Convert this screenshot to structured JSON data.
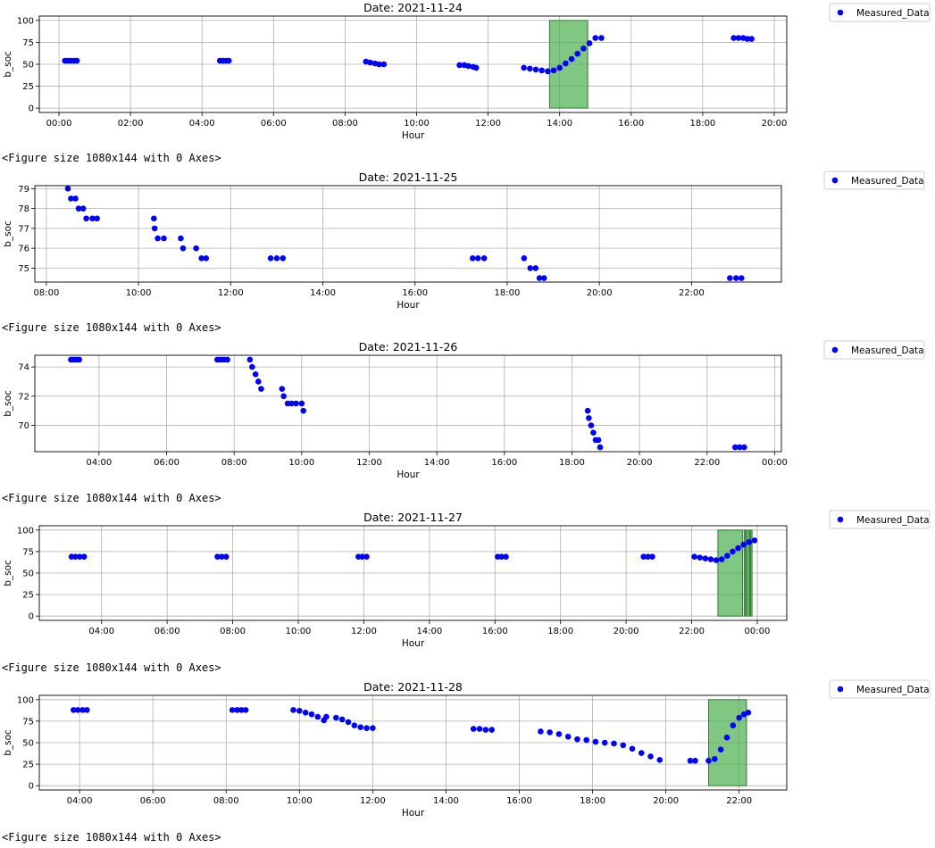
{
  "figure_label": "<Figure size 1080x144 with 0 Axes>",
  "colors": {
    "points": "#0000ff",
    "charge": "#4caf50",
    "grid": "#b0b0b0"
  },
  "chart_data": [
    {
      "type": "scatter",
      "title": "Date: 2021-11-24",
      "xlabel": "Hour",
      "ylabel": "b_soc",
      "x_ticks": [
        "00:00",
        "02:00",
        "04:00",
        "06:00",
        "08:00",
        "10:00",
        "12:00",
        "14:00",
        "16:00",
        "18:00",
        "20:00"
      ],
      "x_tick_hours": [
        0,
        2,
        4,
        6,
        8,
        10,
        12,
        14,
        16,
        18,
        20
      ],
      "xlim_hours": [
        -0.55,
        20.35
      ],
      "y_ticks": [
        0,
        25,
        50,
        75,
        100
      ],
      "ylim": [
        -5,
        105
      ],
      "grid": true,
      "legend": "top-right",
      "series": [
        {
          "name": "Measured_Data",
          "points": [
            [
              "00:10",
              54
            ],
            [
              "00:15",
              54
            ],
            [
              "00:20",
              54
            ],
            [
              "00:25",
              54
            ],
            [
              "00:30",
              54
            ],
            [
              "04:30",
              54
            ],
            [
              "04:35",
              54
            ],
            [
              "04:40",
              54
            ],
            [
              "04:45",
              54
            ],
            [
              "08:35",
              53
            ],
            [
              "08:42",
              52
            ],
            [
              "08:50",
              51
            ],
            [
              "08:57",
              50
            ],
            [
              "09:05",
              50
            ],
            [
              "11:12",
              49
            ],
            [
              "11:20",
              49
            ],
            [
              "11:27",
              48
            ],
            [
              "11:35",
              47
            ],
            [
              "11:40",
              46
            ],
            [
              "13:00",
              46
            ],
            [
              "13:10",
              45
            ],
            [
              "13:20",
              44
            ],
            [
              "13:30",
              43
            ],
            [
              "13:40",
              42
            ],
            [
              "13:50",
              43
            ],
            [
              "14:00",
              46
            ],
            [
              "14:10",
              51
            ],
            [
              "14:20",
              56
            ],
            [
              "14:30",
              62
            ],
            [
              "14:40",
              68
            ],
            [
              "14:50",
              74
            ],
            [
              "15:00",
              80
            ],
            [
              "15:10",
              80
            ],
            [
              "18:52",
              80
            ],
            [
              "19:00",
              80
            ],
            [
              "19:08",
              80
            ],
            [
              "19:15",
              79
            ],
            [
              "19:22",
              79
            ]
          ]
        }
      ],
      "spans": [
        [
          "13:43",
          "14:47"
        ]
      ]
    },
    {
      "type": "scatter",
      "title": "Date: 2021-11-25",
      "xlabel": "Hour",
      "ylabel": "b_soc",
      "x_ticks": [
        "08:00",
        "10:00",
        "12:00",
        "14:00",
        "16:00",
        "18:00",
        "20:00",
        "22:00"
      ],
      "x_tick_hours": [
        8,
        10,
        12,
        14,
        16,
        18,
        20,
        22
      ],
      "xlim_hours": [
        7.75,
        23.95
      ],
      "y_ticks": [
        75,
        76,
        77,
        78,
        79
      ],
      "ylim": [
        74.3,
        79.15
      ],
      "grid": true,
      "legend": "top-right",
      "series": [
        {
          "name": "Measured_Data",
          "points": [
            [
              "08:28",
              79
            ],
            [
              "08:32",
              78.5
            ],
            [
              "08:38",
              78.5
            ],
            [
              "08:42",
              78
            ],
            [
              "08:48",
              78
            ],
            [
              "08:52",
              77.5
            ],
            [
              "09:00",
              77.5
            ],
            [
              "09:06",
              77.5
            ],
            [
              "10:20",
              77.5
            ],
            [
              "10:21",
              77
            ],
            [
              "10:25",
              76.5
            ],
            [
              "10:33",
              76.5
            ],
            [
              "10:55",
              76.5
            ],
            [
              "10:58",
              76
            ],
            [
              "11:15",
              76
            ],
            [
              "11:22",
              75.5
            ],
            [
              "11:28",
              75.5
            ],
            [
              "12:52",
              75.5
            ],
            [
              "13:00",
              75.5
            ],
            [
              "13:08",
              75.5
            ],
            [
              "17:15",
              75.5
            ],
            [
              "17:22",
              75.5
            ],
            [
              "17:30",
              75.5
            ],
            [
              "18:22",
              75.5
            ],
            [
              "18:30",
              75
            ],
            [
              "18:37",
              75
            ],
            [
              "18:42",
              74.5
            ],
            [
              "18:48",
              74.5
            ],
            [
              "22:50",
              74.5
            ],
            [
              "22:58",
              74.5
            ],
            [
              "23:05",
              74.5
            ]
          ]
        }
      ],
      "spans": []
    },
    {
      "type": "scatter",
      "title": "Date: 2021-11-26",
      "xlabel": "Hour",
      "ylabel": "b_soc",
      "x_ticks": [
        "04:00",
        "06:00",
        "08:00",
        "10:00",
        "12:00",
        "14:00",
        "16:00",
        "18:00",
        "20:00",
        "22:00",
        "00:00"
      ],
      "x_tick_hours": [
        4,
        6,
        8,
        10,
        12,
        14,
        16,
        18,
        20,
        22,
        24
      ],
      "xlim_hours": [
        2.1,
        24.2
      ],
      "y_ticks": [
        70,
        72,
        74
      ],
      "ylim": [
        68.2,
        74.8
      ],
      "grid": true,
      "legend": "top-right",
      "series": [
        {
          "name": "Measured_Data",
          "points": [
            [
              "03:10",
              74.5
            ],
            [
              "03:15",
              74.5
            ],
            [
              "03:20",
              74.5
            ],
            [
              "03:25",
              74.5
            ],
            [
              "07:30",
              74.5
            ],
            [
              "07:36",
              74.5
            ],
            [
              "07:42",
              74.5
            ],
            [
              "07:48",
              74.5
            ],
            [
              "08:28",
              74.5
            ],
            [
              "08:32",
              74
            ],
            [
              "08:38",
              73.5
            ],
            [
              "08:43",
              73
            ],
            [
              "08:48",
              72.5
            ],
            [
              "09:25",
              72.5
            ],
            [
              "09:28",
              72
            ],
            [
              "09:35",
              71.5
            ],
            [
              "09:42",
              71.5
            ],
            [
              "09:50",
              71.5
            ],
            [
              "10:00",
              71.5
            ],
            [
              "10:03",
              71
            ],
            [
              "18:28",
              71
            ],
            [
              "18:30",
              70.5
            ],
            [
              "18:34",
              70
            ],
            [
              "18:38",
              69.5
            ],
            [
              "18:42",
              69
            ],
            [
              "18:47",
              69
            ],
            [
              "18:50",
              68.5
            ],
            [
              "22:50",
              68.5
            ],
            [
              "22:58",
              68.5
            ],
            [
              "23:06",
              68.5
            ]
          ]
        }
      ],
      "spans": []
    },
    {
      "type": "scatter",
      "title": "Date: 2021-11-27",
      "xlabel": "Hour",
      "ylabel": "b_soc",
      "x_ticks": [
        "04:00",
        "06:00",
        "08:00",
        "10:00",
        "12:00",
        "14:00",
        "16:00",
        "18:00",
        "20:00",
        "22:00",
        "00:00"
      ],
      "x_tick_hours": [
        4,
        6,
        8,
        10,
        12,
        14,
        16,
        18,
        20,
        22,
        24
      ],
      "xlim_hours": [
        2.1,
        24.9
      ],
      "y_ticks": [
        0,
        25,
        50,
        75,
        100
      ],
      "ylim": [
        -5,
        105
      ],
      "grid": true,
      "legend": "top-right",
      "series": [
        {
          "name": "Measured_Data",
          "points": [
            [
              "03:05",
              69
            ],
            [
              "03:12",
              69
            ],
            [
              "03:20",
              69
            ],
            [
              "03:28",
              69
            ],
            [
              "07:32",
              69
            ],
            [
              "07:40",
              69
            ],
            [
              "07:48",
              69
            ],
            [
              "11:50",
              69
            ],
            [
              "11:57",
              69
            ],
            [
              "12:05",
              69
            ],
            [
              "16:05",
              69
            ],
            [
              "16:12",
              69
            ],
            [
              "16:20",
              69
            ],
            [
              "20:32",
              69
            ],
            [
              "20:40",
              69
            ],
            [
              "20:48",
              69
            ],
            [
              "22:05",
              69
            ],
            [
              "22:15",
              68
            ],
            [
              "22:25",
              67
            ],
            [
              "22:35",
              66
            ],
            [
              "22:45",
              65
            ],
            [
              "22:55",
              66
            ],
            [
              "23:05",
              70
            ],
            [
              "23:15",
              75
            ],
            [
              "23:25",
              79
            ],
            [
              "23:35",
              83
            ],
            [
              "23:45",
              86
            ],
            [
              "23:55",
              88
            ]
          ]
        }
      ],
      "spans": [
        [
          "22:48",
          "23:33"
        ],
        [
          "23:36",
          "23:37"
        ],
        [
          "23:39",
          "23:40"
        ],
        [
          "23:44",
          "23:46"
        ],
        [
          "23:48",
          "23:49"
        ]
      ]
    },
    {
      "type": "scatter",
      "title": "Date: 2021-11-28",
      "xlabel": "Hour",
      "ylabel": "b_soc",
      "x_ticks": [
        "04:00",
        "06:00",
        "08:00",
        "10:00",
        "12:00",
        "14:00",
        "16:00",
        "18:00",
        "20:00",
        "22:00"
      ],
      "x_tick_hours": [
        4,
        6,
        8,
        10,
        12,
        14,
        16,
        18,
        20,
        22
      ],
      "xlim_hours": [
        2.9,
        23.3
      ],
      "y_ticks": [
        0,
        25,
        50,
        75,
        100
      ],
      "ylim": [
        -5,
        105
      ],
      "grid": true,
      "legend": "top-right",
      "series": [
        {
          "name": "Measured_Data",
          "points": [
            [
              "03:50",
              88
            ],
            [
              "03:57",
              88
            ],
            [
              "04:05",
              88
            ],
            [
              "04:12",
              88
            ],
            [
              "08:10",
              88
            ],
            [
              "08:18",
              88
            ],
            [
              "08:25",
              88
            ],
            [
              "08:32",
              88
            ],
            [
              "09:50",
              88
            ],
            [
              "10:00",
              87
            ],
            [
              "10:10",
              85
            ],
            [
              "10:20",
              83
            ],
            [
              "10:30",
              80
            ],
            [
              "10:40",
              76
            ],
            [
              "10:44",
              80
            ],
            [
              "11:00",
              79
            ],
            [
              "11:10",
              77
            ],
            [
              "11:20",
              74
            ],
            [
              "11:30",
              70
            ],
            [
              "11:40",
              68
            ],
            [
              "11:50",
              67
            ],
            [
              "12:00",
              67
            ],
            [
              "14:45",
              66
            ],
            [
              "14:55",
              66
            ],
            [
              "15:05",
              65
            ],
            [
              "15:15",
              65
            ],
            [
              "16:35",
              63
            ],
            [
              "16:50",
              62
            ],
            [
              "17:05",
              60
            ],
            [
              "17:20",
              57
            ],
            [
              "17:35",
              54
            ],
            [
              "17:50",
              53
            ],
            [
              "18:05",
              51
            ],
            [
              "18:20",
              50
            ],
            [
              "18:35",
              49
            ],
            [
              "18:50",
              47
            ],
            [
              "19:05",
              43
            ],
            [
              "19:20",
              38
            ],
            [
              "19:35",
              34
            ],
            [
              "19:50",
              30
            ],
            [
              "20:40",
              29
            ],
            [
              "20:48",
              29
            ],
            [
              "21:10",
              29
            ],
            [
              "21:20",
              31
            ],
            [
              "21:30",
              42
            ],
            [
              "21:40",
              56
            ],
            [
              "21:50",
              70
            ],
            [
              "22:00",
              79
            ],
            [
              "22:08",
              83
            ],
            [
              "22:15",
              85
            ]
          ]
        }
      ],
      "spans": [
        [
          "21:10",
          "22:12"
        ]
      ]
    }
  ]
}
